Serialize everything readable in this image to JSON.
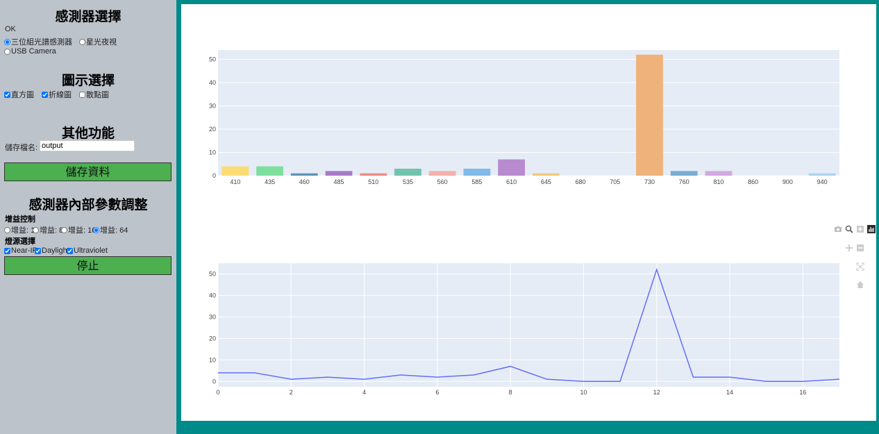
{
  "sidebar": {
    "sensor_title": "感測器選擇",
    "status": "OK",
    "sensors": [
      "三位組光譜感測器",
      "星光夜視",
      "USB Camera"
    ],
    "sensor_selected": 0,
    "chart_title": "圖示選擇",
    "charts": [
      "直方圖",
      "折線圖",
      "散點圖"
    ],
    "charts_checked": [
      true,
      true,
      false
    ],
    "other_title": "其他功能",
    "filename_label": "儲存檔名:",
    "filename_value": "output",
    "save_label": "儲存資料",
    "params_title": "感測器內部參數調整",
    "gain_title": "增益控制",
    "gains": [
      "增益: 1",
      "增益: 8",
      "增益: 16",
      "增益: 64"
    ],
    "gain_selected": 3,
    "light_title": "燈源選擇",
    "lights": [
      "Near-IR",
      "Daylight",
      "Ultraviolet"
    ],
    "lights_checked": [
      true,
      true,
      true
    ],
    "stop_label": "停止"
  },
  "colors": {
    "sidebar_bg": "#bdc3cb",
    "main_bg": "#008b8b",
    "button": "#4caf50",
    "plot_bg": "#e5ecf6",
    "line": "#636efa"
  },
  "modebar": [
    "camera-icon",
    "zoom-icon",
    "zoom-in-icon",
    "plotly-logo",
    "pan-icon",
    "zoom-out-icon",
    "autoscale-icon",
    "reset-axes-icon"
  ],
  "chart_data": [
    {
      "type": "bar",
      "categories": [
        "410",
        "435",
        "460",
        "485",
        "510",
        "535",
        "560",
        "585",
        "610",
        "645",
        "680",
        "705",
        "730",
        "760",
        "810",
        "860",
        "900",
        "940"
      ],
      "values": [
        4,
        4,
        1,
        2,
        1,
        3,
        2,
        3,
        7,
        1,
        0,
        0,
        52,
        2,
        2,
        0,
        0,
        1
      ],
      "colors": [
        "#f9dc74",
        "#7ddf9e",
        "#5d95b7",
        "#a77cc7",
        "#f08a80",
        "#72c3ad",
        "#f4b1aa",
        "#7fbae8",
        "#b88bd0",
        "#f4c87a",
        "#eeeeee",
        "#eeeeee",
        "#efb27a",
        "#78acd3",
        "#d4a8e0",
        "#dddddd",
        "#dddddd",
        "#a9d4ee"
      ],
      "ylim": [
        0,
        54
      ],
      "yticks": [
        0,
        10,
        20,
        30,
        40,
        50
      ],
      "grid": true
    },
    {
      "type": "line",
      "x": [
        0,
        1,
        2,
        3,
        4,
        5,
        6,
        7,
        8,
        9,
        10,
        11,
        12,
        13,
        14,
        15,
        16,
        17
      ],
      "y": [
        4,
        4,
        1,
        2,
        1,
        3,
        2,
        3,
        7,
        1,
        0,
        0,
        52,
        2,
        2,
        0,
        0,
        1
      ],
      "xlim": [
        0,
        17
      ],
      "ylim": [
        -2.5,
        55
      ],
      "xticks": [
        0,
        2,
        4,
        6,
        8,
        10,
        12,
        14,
        16
      ],
      "yticks": [
        0,
        10,
        20,
        30,
        40,
        50
      ],
      "grid": true
    }
  ]
}
